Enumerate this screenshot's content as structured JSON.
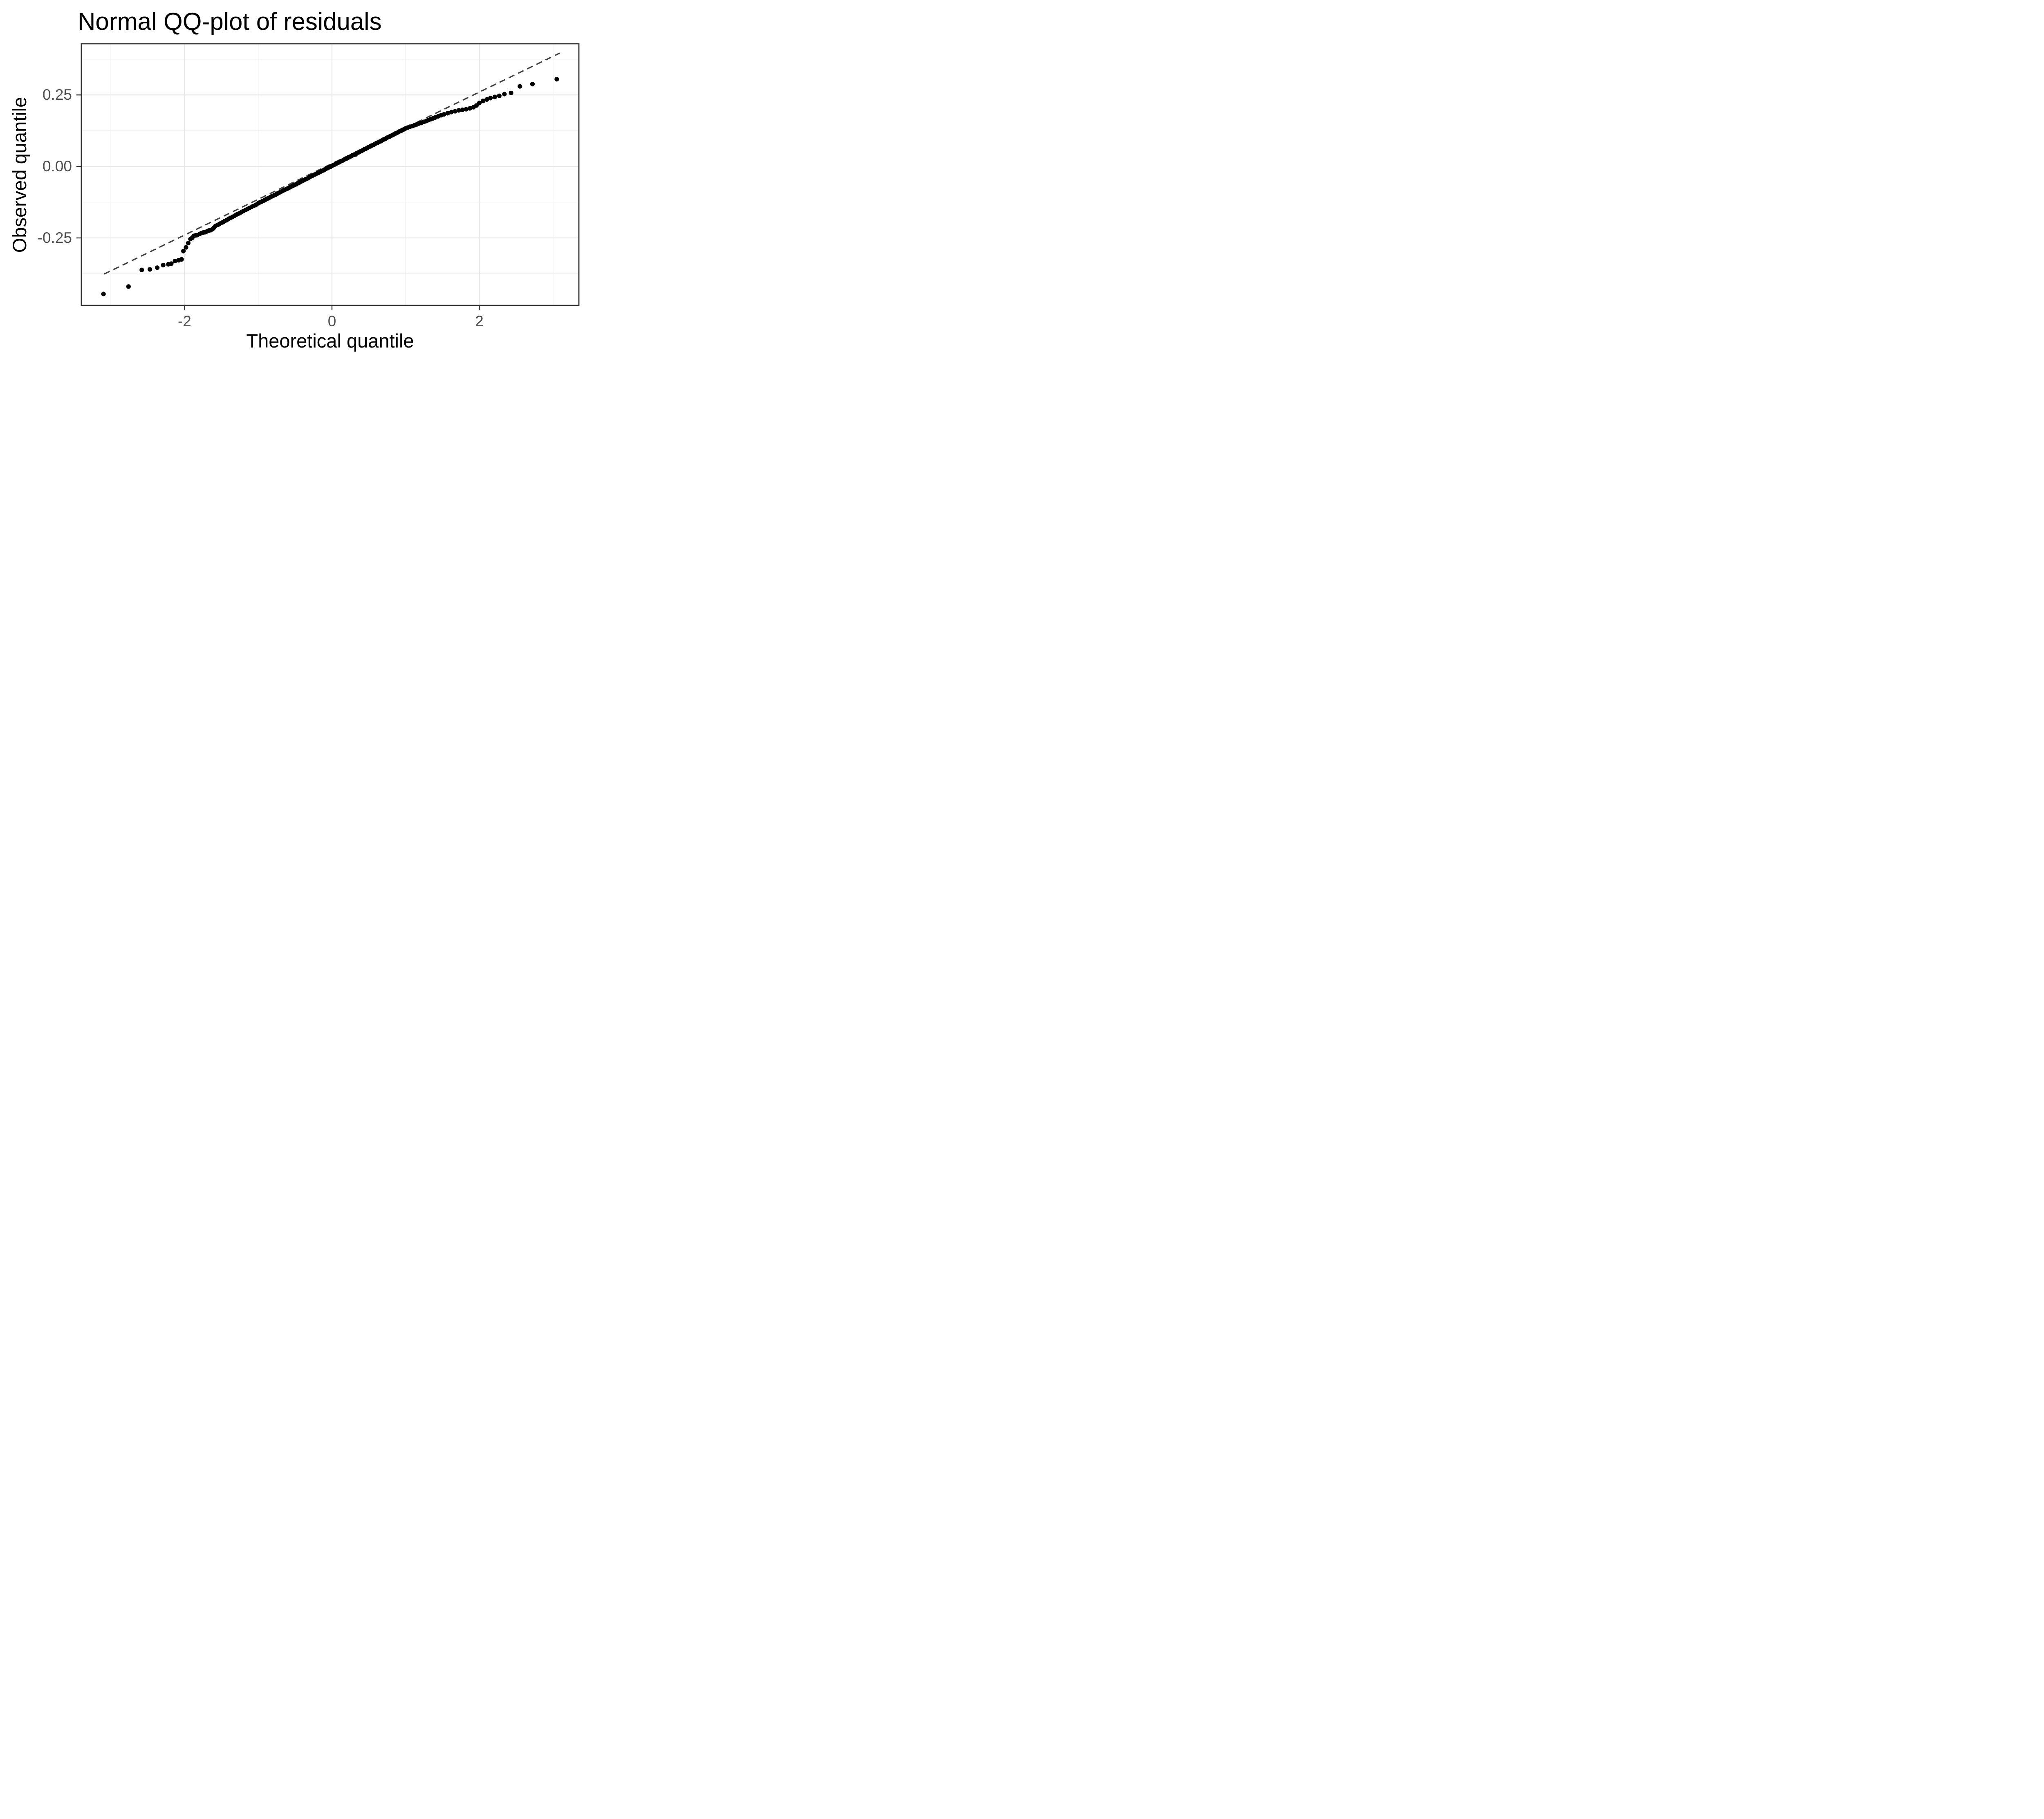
{
  "page": {
    "title": "Normal QQ-plot of residuals"
  },
  "colors": {
    "background": "#ffffff",
    "panel_background": "#ffffff",
    "panel_border": "#333333",
    "grid_major": "#e8e8e8",
    "grid_minor": "#f0f0f0",
    "tick_mark": "#333333",
    "tick_label": "#4d4d4d",
    "axis_title": "#000000",
    "title": "#000000",
    "point": "#000000",
    "reference_line": "#404040"
  },
  "chart_data": {
    "type": "scatter",
    "title": "Normal QQ-plot of residuals",
    "xlabel": "Theoretical quantile",
    "ylabel": "Observed quantile",
    "xlim": [
      -3.4,
      3.35
    ],
    "ylim": [
      -0.486,
      0.429
    ],
    "x_ticks": {
      "values": [
        -2,
        0,
        2
      ],
      "labels": [
        "-2",
        "0",
        "2"
      ]
    },
    "y_ticks": {
      "values": [
        0.25,
        0,
        -0.25
      ],
      "labels": [
        "0.25",
        "0.00",
        "-0.25"
      ]
    },
    "x_minor_gridlines": [
      -3,
      -1,
      1,
      3
    ],
    "y_minor_gridlines": [
      0.375,
      0.125,
      -0.125,
      -0.375
    ],
    "grid": "major+minor",
    "legend_position": "none",
    "reference_line": {
      "style": "dashed",
      "intercept": 0.01,
      "slope": 0.125,
      "x_from": -3.09,
      "x_to": 3.09
    },
    "points": [
      [
        -3.1,
        -0.446
      ],
      [
        -2.76,
        -0.42
      ],
      [
        -2.58,
        -0.362
      ],
      [
        -2.47,
        -0.36
      ],
      [
        -2.37,
        -0.354
      ],
      [
        -2.29,
        -0.345
      ],
      [
        -2.22,
        -0.342
      ],
      [
        -2.18,
        -0.34
      ],
      [
        -2.13,
        -0.331
      ],
      [
        -2.08,
        -0.328
      ],
      [
        -2.04,
        -0.325
      ],
      [
        -2.015,
        -0.296
      ],
      [
        -1.98,
        -0.283
      ],
      [
        -1.95,
        -0.268
      ],
      [
        -1.92,
        -0.254
      ],
      [
        -1.895,
        -0.249
      ],
      [
        -1.875,
        -0.243
      ],
      [
        -1.85,
        -0.241
      ],
      [
        -1.825,
        -0.24
      ],
      [
        -1.795,
        -0.236
      ],
      [
        -1.77,
        -0.233
      ],
      [
        -1.745,
        -0.231
      ],
      [
        -1.72,
        -0.23
      ],
      [
        -1.695,
        -0.227
      ],
      [
        -1.67,
        -0.224
      ],
      [
        -1.645,
        -0.223
      ],
      [
        -1.62,
        -0.219
      ],
      [
        -1.6,
        -0.214
      ],
      [
        -1.58,
        -0.208
      ],
      [
        -1.555,
        -0.205
      ],
      [
        -1.53,
        -0.202
      ],
      [
        -1.505,
        -0.198
      ],
      [
        -1.48,
        -0.195
      ],
      [
        -1.455,
        -0.191
      ],
      [
        -1.43,
        -0.188
      ],
      [
        -1.405,
        -0.184
      ],
      [
        -1.38,
        -0.18
      ],
      [
        -1.35,
        -0.177
      ],
      [
        -1.325,
        -0.173
      ],
      [
        -1.3,
        -0.169
      ],
      [
        -1.275,
        -0.166
      ],
      [
        -1.25,
        -0.163
      ],
      [
        -1.225,
        -0.159
      ],
      [
        -1.2,
        -0.156
      ],
      [
        -1.17,
        -0.152
      ],
      [
        -1.145,
        -0.149
      ],
      [
        -1.12,
        -0.145
      ],
      [
        -1.09,
        -0.141
      ],
      [
        -1.06,
        -0.138
      ],
      [
        -1.03,
        -0.134
      ],
      [
        -1.0,
        -0.129
      ],
      [
        -0.98,
        -0.126
      ],
      [
        -0.96,
        -0.124
      ],
      [
        -0.94,
        -0.121
      ],
      [
        -0.92,
        -0.119
      ],
      [
        -0.9,
        -0.116
      ],
      [
        -0.88,
        -0.113
      ],
      [
        -0.86,
        -0.111
      ],
      [
        -0.84,
        -0.108
      ],
      [
        -0.82,
        -0.105
      ],
      [
        -0.8,
        -0.103
      ],
      [
        -0.78,
        -0.1
      ],
      [
        -0.76,
        -0.098
      ],
      [
        -0.74,
        -0.095
      ],
      [
        -0.72,
        -0.092
      ],
      [
        -0.7,
        -0.09
      ],
      [
        -0.68,
        -0.087
      ],
      [
        -0.66,
        -0.084
      ],
      [
        -0.64,
        -0.082
      ],
      [
        -0.62,
        -0.079
      ],
      [
        -0.6,
        -0.077
      ],
      [
        -0.58,
        -0.074
      ],
      [
        -0.56,
        -0.071
      ],
      [
        -0.54,
        -0.069
      ],
      [
        -0.52,
        -0.066
      ],
      [
        -0.5,
        -0.064
      ],
      [
        -0.48,
        -0.062
      ],
      [
        -0.46,
        -0.058
      ],
      [
        -0.44,
        -0.056
      ],
      [
        -0.42,
        -0.053
      ],
      [
        -0.4,
        -0.05
      ],
      [
        -0.38,
        -0.048
      ],
      [
        -0.36,
        -0.045
      ],
      [
        -0.34,
        -0.043
      ],
      [
        -0.32,
        -0.04
      ],
      [
        -0.3,
        -0.037
      ],
      [
        -0.28,
        -0.034
      ],
      [
        -0.26,
        -0.032
      ],
      [
        -0.24,
        -0.029
      ],
      [
        -0.22,
        -0.027
      ],
      [
        -0.2,
        -0.024
      ],
      [
        -0.18,
        -0.022
      ],
      [
        -0.16,
        -0.019
      ],
      [
        -0.14,
        -0.016
      ],
      [
        -0.12,
        -0.014
      ],
      [
        -0.1,
        -0.011
      ],
      [
        -0.08,
        -0.008
      ],
      [
        -0.06,
        -0.006
      ],
      [
        -0.04,
        -0.003
      ],
      [
        -0.02,
        -0.001
      ],
      [
        0.0,
        0.002
      ],
      [
        0.02,
        0.005
      ],
      [
        0.04,
        0.007
      ],
      [
        0.06,
        0.01
      ],
      [
        0.08,
        0.012
      ],
      [
        0.1,
        0.015
      ],
      [
        0.12,
        0.018
      ],
      [
        0.14,
        0.02
      ],
      [
        0.16,
        0.023
      ],
      [
        0.18,
        0.026
      ],
      [
        0.2,
        0.028
      ],
      [
        0.22,
        0.031
      ],
      [
        0.24,
        0.033
      ],
      [
        0.26,
        0.036
      ],
      [
        0.28,
        0.039
      ],
      [
        0.3,
        0.041
      ],
      [
        0.32,
        0.042
      ],
      [
        0.34,
        0.047
      ],
      [
        0.36,
        0.049
      ],
      [
        0.38,
        0.052
      ],
      [
        0.4,
        0.054
      ],
      [
        0.42,
        0.057
      ],
      [
        0.44,
        0.06
      ],
      [
        0.46,
        0.062
      ],
      [
        0.48,
        0.065
      ],
      [
        0.5,
        0.068
      ],
      [
        0.52,
        0.07
      ],
      [
        0.54,
        0.073
      ],
      [
        0.56,
        0.075
      ],
      [
        0.58,
        0.078
      ],
      [
        0.6,
        0.081
      ],
      [
        0.62,
        0.083
      ],
      [
        0.64,
        0.086
      ],
      [
        0.66,
        0.088
      ],
      [
        0.68,
        0.091
      ],
      [
        0.7,
        0.094
      ],
      [
        0.72,
        0.096
      ],
      [
        0.74,
        0.099
      ],
      [
        0.76,
        0.102
      ],
      [
        0.78,
        0.104
      ],
      [
        0.8,
        0.107
      ],
      [
        0.82,
        0.109
      ],
      [
        0.84,
        0.112
      ],
      [
        0.86,
        0.115
      ],
      [
        0.88,
        0.117
      ],
      [
        0.9,
        0.12
      ],
      [
        0.92,
        0.123
      ],
      [
        0.94,
        0.125
      ],
      [
        0.96,
        0.128
      ],
      [
        0.98,
        0.13
      ],
      [
        1.0,
        0.133
      ],
      [
        1.03,
        0.136
      ],
      [
        1.06,
        0.139
      ],
      [
        1.09,
        0.141
      ],
      [
        1.12,
        0.144
      ],
      [
        1.15,
        0.147
      ],
      [
        1.18,
        0.15
      ],
      [
        1.21,
        0.152
      ],
      [
        1.25,
        0.156
      ],
      [
        1.28,
        0.159
      ],
      [
        1.31,
        0.162
      ],
      [
        1.34,
        0.165
      ],
      [
        1.37,
        0.168
      ],
      [
        1.4,
        0.171
      ],
      [
        1.44,
        0.175
      ],
      [
        1.48,
        0.179
      ],
      [
        1.52,
        0.182
      ],
      [
        1.57,
        0.186
      ],
      [
        1.62,
        0.19
      ],
      [
        1.67,
        0.193
      ],
      [
        1.72,
        0.196
      ],
      [
        1.77,
        0.198
      ],
      [
        1.82,
        0.2
      ],
      [
        1.87,
        0.203
      ],
      [
        1.92,
        0.207
      ],
      [
        1.96,
        0.213
      ],
      [
        2.0,
        0.222
      ],
      [
        2.05,
        0.229
      ],
      [
        2.1,
        0.234
      ],
      [
        2.15,
        0.239
      ],
      [
        2.21,
        0.243
      ],
      [
        2.27,
        0.247
      ],
      [
        2.34,
        0.253
      ],
      [
        2.43,
        0.257
      ],
      [
        2.55,
        0.28
      ],
      [
        2.72,
        0.288
      ],
      [
        3.05,
        0.305
      ]
    ]
  }
}
